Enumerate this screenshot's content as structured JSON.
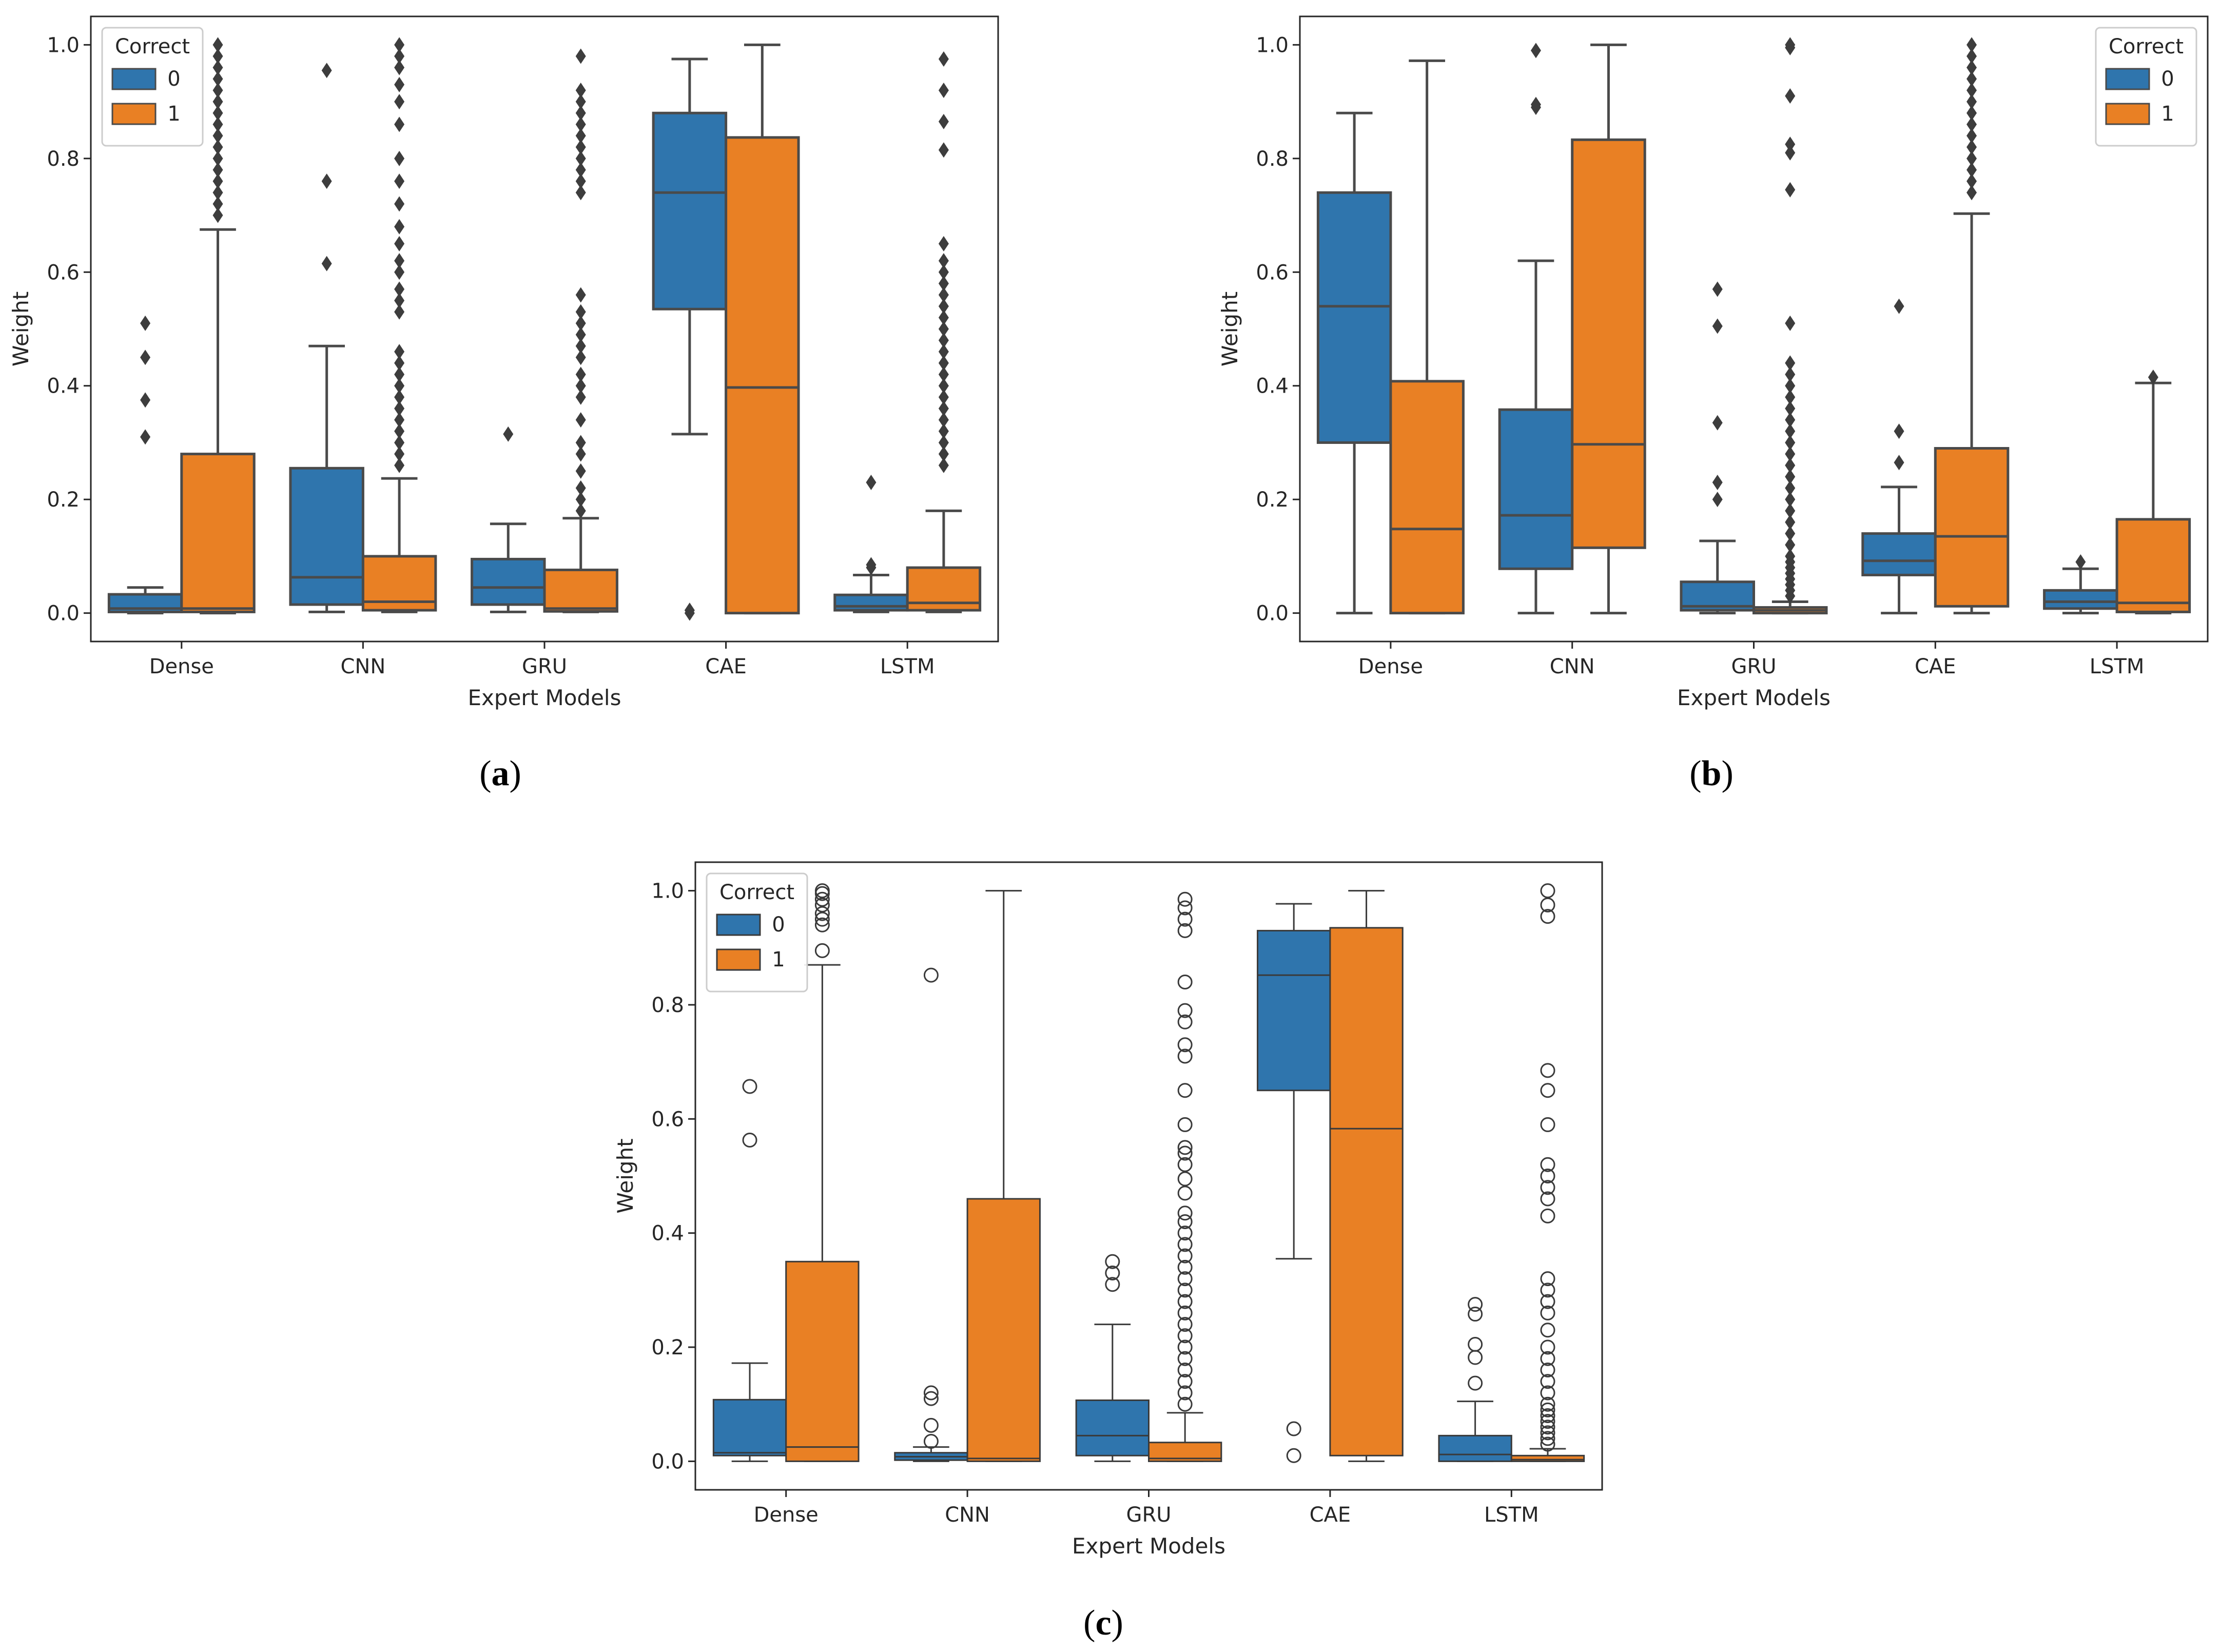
{
  "chart_data": [
    {
      "panel_label": "(a)",
      "type": "boxplot",
      "xlabel": "Expert Models",
      "ylabel": "Weight",
      "ylim": [
        -0.05,
        1.05
      ],
      "yticks": [
        "0.0",
        "0.2",
        "0.4",
        "0.6",
        "0.8",
        "1.0"
      ],
      "categories": [
        "Dense",
        "CNN",
        "GRU",
        "CAE",
        "LSTM"
      ],
      "legend": {
        "title": "Correct",
        "position": "top-left"
      },
      "flier_style": "diamond",
      "series": [
        {
          "name": "0",
          "color": "#2f75ad",
          "boxes": [
            {
              "whislo": 0.0,
              "q1": 0.002,
              "med": 0.008,
              "q3": 0.033,
              "whishi": 0.045,
              "fliers": [
                0.31,
                0.375,
                0.45,
                0.51
              ]
            },
            {
              "whislo": 0.002,
              "q1": 0.015,
              "med": 0.063,
              "q3": 0.255,
              "whishi": 0.47,
              "fliers": [
                0.615,
                0.76,
                0.955
              ]
            },
            {
              "whislo": 0.002,
              "q1": 0.015,
              "med": 0.045,
              "q3": 0.095,
              "whishi": 0.157,
              "fliers": [
                0.315
              ]
            },
            {
              "whislo": 0.315,
              "q1": 0.535,
              "med": 0.74,
              "q3": 0.88,
              "whishi": 0.975,
              "fliers": [
                0.0,
                0.005
              ]
            },
            {
              "whislo": 0.002,
              "q1": 0.005,
              "med": 0.012,
              "q3": 0.032,
              "whishi": 0.067,
              "fliers": [
                0.08,
                0.085,
                0.23
              ]
            }
          ]
        },
        {
          "name": "1",
          "color": "#e98024",
          "boxes": [
            {
              "whislo": 0.0,
              "q1": 0.002,
              "med": 0.008,
              "q3": 0.28,
              "whishi": 0.675,
              "fliers": [
                0.7,
                0.72,
                0.74,
                0.76,
                0.78,
                0.8,
                0.82,
                0.84,
                0.86,
                0.88,
                0.9,
                0.92,
                0.94,
                0.96,
                0.98,
                1.0
              ]
            },
            {
              "whislo": 0.002,
              "q1": 0.005,
              "med": 0.02,
              "q3": 0.1,
              "whishi": 0.237,
              "fliers": [
                0.26,
                0.28,
                0.3,
                0.32,
                0.34,
                0.36,
                0.38,
                0.4,
                0.42,
                0.44,
                0.46,
                0.53,
                0.55,
                0.57,
                0.6,
                0.62,
                0.65,
                0.68,
                0.72,
                0.76,
                0.8,
                0.86,
                0.9,
                0.93,
                0.96,
                0.98,
                1.0
              ]
            },
            {
              "whislo": 0.002,
              "q1": 0.003,
              "med": 0.008,
              "q3": 0.076,
              "whishi": 0.167,
              "fliers": [
                0.18,
                0.2,
                0.22,
                0.25,
                0.28,
                0.3,
                0.34,
                0.38,
                0.4,
                0.42,
                0.45,
                0.47,
                0.49,
                0.51,
                0.53,
                0.56,
                0.74,
                0.76,
                0.78,
                0.8,
                0.82,
                0.84,
                0.86,
                0.88,
                0.9,
                0.92,
                0.98
              ]
            },
            {
              "whislo": 0.0,
              "q1": 0.0,
              "med": 0.397,
              "q3": 0.837,
              "whishi": 1.0,
              "fliers": []
            },
            {
              "whislo": 0.002,
              "q1": 0.005,
              "med": 0.018,
              "q3": 0.08,
              "whishi": 0.18,
              "fliers": [
                0.26,
                0.28,
                0.3,
                0.32,
                0.34,
                0.36,
                0.38,
                0.4,
                0.42,
                0.44,
                0.46,
                0.48,
                0.5,
                0.52,
                0.54,
                0.56,
                0.58,
                0.6,
                0.62,
                0.65,
                0.815,
                0.865,
                0.92,
                0.975
              ]
            }
          ]
        }
      ]
    },
    {
      "panel_label": "(b)",
      "type": "boxplot",
      "xlabel": "Expert Models",
      "ylabel": "Weight",
      "ylim": [
        -0.05,
        1.05
      ],
      "yticks": [
        "0.0",
        "0.2",
        "0.4",
        "0.6",
        "0.8",
        "1.0"
      ],
      "categories": [
        "Dense",
        "CNN",
        "GRU",
        "CAE",
        "LSTM"
      ],
      "legend": {
        "title": "Correct",
        "position": "top-right"
      },
      "flier_style": "diamond",
      "series": [
        {
          "name": "0",
          "color": "#2f75ad",
          "boxes": [
            {
              "whislo": 0.0,
              "q1": 0.3,
              "med": 0.54,
              "q3": 0.74,
              "whishi": 0.88,
              "fliers": []
            },
            {
              "whislo": 0.0,
              "q1": 0.078,
              "med": 0.172,
              "q3": 0.358,
              "whishi": 0.62,
              "fliers": [
                0.89,
                0.895,
                0.99
              ]
            },
            {
              "whislo": 0.0,
              "q1": 0.005,
              "med": 0.012,
              "q3": 0.055,
              "whishi": 0.127,
              "fliers": [
                0.2,
                0.23,
                0.335,
                0.505,
                0.57
              ]
            },
            {
              "whislo": 0.0,
              "q1": 0.067,
              "med": 0.092,
              "q3": 0.14,
              "whishi": 0.222,
              "fliers": [
                0.265,
                0.32,
                0.54
              ]
            },
            {
              "whislo": 0.0,
              "q1": 0.008,
              "med": 0.02,
              "q3": 0.04,
              "whishi": 0.078,
              "fliers": [
                0.09
              ]
            }
          ]
        },
        {
          "name": "1",
          "color": "#e98024",
          "boxes": [
            {
              "whislo": 0.0,
              "q1": 0.0,
              "med": 0.148,
              "q3": 0.408,
              "whishi": 0.972,
              "fliers": []
            },
            {
              "whislo": 0.0,
              "q1": 0.115,
              "med": 0.297,
              "q3": 0.833,
              "whishi": 1.0,
              "fliers": []
            },
            {
              "whislo": 0.0,
              "q1": 0.0,
              "med": 0.005,
              "q3": 0.01,
              "whishi": 0.02,
              "fliers": [
                0.03,
                0.04,
                0.05,
                0.06,
                0.07,
                0.08,
                0.09,
                0.1,
                0.12,
                0.14,
                0.16,
                0.18,
                0.2,
                0.22,
                0.24,
                0.26,
                0.28,
                0.3,
                0.32,
                0.34,
                0.36,
                0.38,
                0.4,
                0.42,
                0.44,
                0.51,
                0.745,
                0.81,
                0.825,
                0.91,
                0.995,
                1.0
              ]
            },
            {
              "whislo": 0.0,
              "q1": 0.012,
              "med": 0.135,
              "q3": 0.29,
              "whishi": 0.703,
              "fliers": [
                0.74,
                0.76,
                0.78,
                0.8,
                0.82,
                0.84,
                0.86,
                0.88,
                0.9,
                0.92,
                0.94,
                0.96,
                0.98,
                1.0
              ]
            },
            {
              "whislo": 0.0,
              "q1": 0.002,
              "med": 0.018,
              "q3": 0.165,
              "whishi": 0.405,
              "fliers": [
                0.415
              ]
            }
          ]
        }
      ]
    },
    {
      "panel_label": "(c)",
      "type": "boxplot",
      "xlabel": "Expert Models",
      "ylabel": "Weight",
      "ylim": [
        -0.05,
        1.05
      ],
      "yticks": [
        "0.0",
        "0.2",
        "0.4",
        "0.6",
        "0.8",
        "1.0"
      ],
      "categories": [
        "Dense",
        "CNN",
        "GRU",
        "CAE",
        "LSTM"
      ],
      "legend": {
        "title": "Correct",
        "position": "top-left"
      },
      "flier_style": "circle",
      "series": [
        {
          "name": "0",
          "color": "#2f75ad",
          "boxes": [
            {
              "whislo": 0.0,
              "q1": 0.01,
              "med": 0.015,
              "q3": 0.108,
              "whishi": 0.172,
              "fliers": [
                0.563,
                0.657
              ]
            },
            {
              "whislo": 0.0,
              "q1": 0.002,
              "med": 0.008,
              "q3": 0.015,
              "whishi": 0.025,
              "fliers": [
                0.035,
                0.063,
                0.11,
                0.12,
                0.852
              ]
            },
            {
              "whislo": 0.0,
              "q1": 0.01,
              "med": 0.045,
              "q3": 0.107,
              "whishi": 0.24,
              "fliers": [
                0.31,
                0.33,
                0.35
              ]
            },
            {
              "whislo": 0.355,
              "q1": 0.65,
              "med": 0.852,
              "q3": 0.93,
              "whishi": 0.977,
              "fliers": [
                0.01,
                0.057
              ]
            },
            {
              "whislo": 0.0,
              "q1": 0.0,
              "med": 0.012,
              "q3": 0.045,
              "whishi": 0.105,
              "fliers": [
                0.137,
                0.182,
                0.205,
                0.258,
                0.275
              ]
            }
          ]
        },
        {
          "name": "1",
          "color": "#e98024",
          "boxes": [
            {
              "whislo": 0.0,
              "q1": 0.0,
              "med": 0.025,
              "q3": 0.35,
              "whishi": 0.87,
              "fliers": [
                0.895,
                0.94,
                0.95,
                0.96,
                0.975,
                0.985,
                0.995,
                1.0
              ]
            },
            {
              "whislo": 0.0,
              "q1": 0.0,
              "med": 0.005,
              "q3": 0.46,
              "whishi": 1.0,
              "fliers": []
            },
            {
              "whislo": 0.0,
              "q1": 0.0,
              "med": 0.005,
              "q3": 0.033,
              "whishi": 0.085,
              "fliers": [
                0.1,
                0.12,
                0.14,
                0.16,
                0.18,
                0.2,
                0.22,
                0.24,
                0.26,
                0.28,
                0.3,
                0.32,
                0.34,
                0.36,
                0.38,
                0.4,
                0.42,
                0.435,
                0.47,
                0.495,
                0.52,
                0.54,
                0.55,
                0.59,
                0.65,
                0.71,
                0.73,
                0.77,
                0.79,
                0.84,
                0.93,
                0.95,
                0.97,
                0.985
              ]
            },
            {
              "whislo": 0.0,
              "q1": 0.01,
              "med": 0.583,
              "q3": 0.935,
              "whishi": 1.0,
              "fliers": []
            },
            {
              "whislo": 0.0,
              "q1": 0.0,
              "med": 0.003,
              "q3": 0.01,
              "whishi": 0.022,
              "fliers": [
                0.03,
                0.04,
                0.05,
                0.06,
                0.07,
                0.08,
                0.09,
                0.1,
                0.12,
                0.14,
                0.16,
                0.18,
                0.2,
                0.23,
                0.26,
                0.28,
                0.3,
                0.32,
                0.43,
                0.46,
                0.48,
                0.5,
                0.52,
                0.59,
                0.65,
                0.685,
                0.955,
                0.975,
                1.0
              ]
            }
          ]
        }
      ]
    }
  ]
}
